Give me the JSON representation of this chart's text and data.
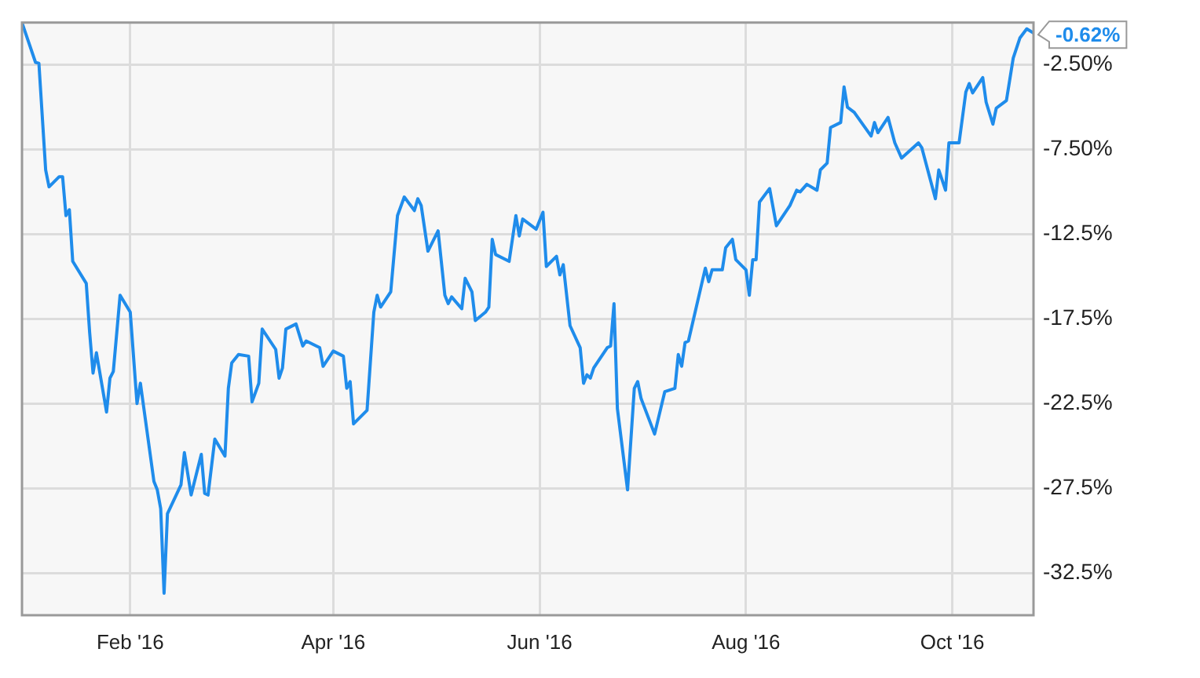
{
  "chart_data": {
    "type": "line",
    "x": [
      "2015-12-31",
      "2016-01-04",
      "2016-01-05",
      "2016-01-07",
      "2016-01-08",
      "2016-01-11",
      "2016-01-12",
      "2016-01-13",
      "2016-01-14",
      "2016-01-15",
      "2016-01-19",
      "2016-01-20",
      "2016-01-21",
      "2016-01-22",
      "2016-01-25",
      "2016-01-26",
      "2016-01-27",
      "2016-01-29",
      "2016-02-01",
      "2016-02-03",
      "2016-02-04",
      "2016-02-08",
      "2016-02-09",
      "2016-02-10",
      "2016-02-11",
      "2016-02-12",
      "2016-02-16",
      "2016-02-17",
      "2016-02-19",
      "2016-02-22",
      "2016-02-23",
      "2016-02-24",
      "2016-02-26",
      "2016-02-29",
      "2016-03-01",
      "2016-03-02",
      "2016-03-04",
      "2016-03-07",
      "2016-03-08",
      "2016-03-10",
      "2016-03-11",
      "2016-03-15",
      "2016-03-16",
      "2016-03-17",
      "2016-03-18",
      "2016-03-21",
      "2016-03-23",
      "2016-03-24",
      "2016-03-28",
      "2016-03-29",
      "2016-04-01",
      "2016-04-04",
      "2016-04-05",
      "2016-04-06",
      "2016-04-07",
      "2016-04-11",
      "2016-04-13",
      "2016-04-14",
      "2016-04-15",
      "2016-04-18",
      "2016-04-20",
      "2016-04-22",
      "2016-04-25",
      "2016-04-26",
      "2016-04-27",
      "2016-04-29",
      "2016-05-02",
      "2016-05-04",
      "2016-05-05",
      "2016-05-06",
      "2016-05-09",
      "2016-05-10",
      "2016-05-12",
      "2016-05-13",
      "2016-05-16",
      "2016-05-17",
      "2016-05-18",
      "2016-05-19",
      "2016-05-23",
      "2016-05-25",
      "2016-05-26",
      "2016-05-27",
      "2016-05-31",
      "2016-06-02",
      "2016-06-03",
      "2016-06-06",
      "2016-06-07",
      "2016-06-08",
      "2016-06-10",
      "2016-06-13",
      "2016-06-14",
      "2016-06-15",
      "2016-06-16",
      "2016-06-17",
      "2016-06-21",
      "2016-06-22",
      "2016-06-23",
      "2016-06-24",
      "2016-06-27",
      "2016-06-29",
      "2016-06-30",
      "2016-07-01",
      "2016-07-05",
      "2016-07-08",
      "2016-07-11",
      "2016-07-12",
      "2016-07-13",
      "2016-07-14",
      "2016-07-15",
      "2016-07-20",
      "2016-07-21",
      "2016-07-22",
      "2016-07-25",
      "2016-07-26",
      "2016-07-28",
      "2016-07-29",
      "2016-08-01",
      "2016-08-02",
      "2016-08-03",
      "2016-08-04",
      "2016-08-05",
      "2016-08-08",
      "2016-08-10",
      "2016-08-14",
      "2016-08-16",
      "2016-08-17",
      "2016-08-19",
      "2016-08-22",
      "2016-08-23",
      "2016-08-25",
      "2016-08-26",
      "2016-08-29",
      "2016-08-30",
      "2016-08-31",
      "2016-09-02",
      "2016-09-07",
      "2016-09-08",
      "2016-09-09",
      "2016-09-12",
      "2016-09-14",
      "2016-09-16",
      "2016-09-21",
      "2016-09-22",
      "2016-09-26",
      "2016-09-27",
      "2016-09-29",
      "2016-09-30",
      "2016-10-03",
      "2016-10-05",
      "2016-10-06",
      "2016-10-07",
      "2016-10-10",
      "2016-10-11",
      "2016-10-13",
      "2016-10-14",
      "2016-10-17",
      "2016-10-19",
      "2016-10-21",
      "2016-10-23",
      "2016-10-25"
    ],
    "series": [
      {
        "color": "#1f8ceb",
        "values": [
          0,
          -2.35,
          -2.4,
          -8.7,
          -9.7,
          -9.1,
          -9.1,
          -11.4,
          -11.05,
          -14.1,
          -15.4,
          -18.3,
          -20.7,
          -19.5,
          -23.0,
          -21.0,
          -20.6,
          -16.1,
          -17.1,
          -22.5,
          -21.3,
          -27.1,
          -27.6,
          -28.7,
          -33.7,
          -29.0,
          -27.3,
          -25.4,
          -27.9,
          -25.5,
          -27.8,
          -27.9,
          -24.6,
          -25.6,
          -21.6,
          -20.1,
          -19.6,
          -19.7,
          -22.4,
          -21.3,
          -18.1,
          -19.3,
          -21.0,
          -20.4,
          -18.1,
          -17.8,
          -19.1,
          -18.8,
          -19.2,
          -20.3,
          -19.4,
          -19.7,
          -21.6,
          -21.2,
          -23.7,
          -22.9,
          -17.1,
          -16.1,
          -16.8,
          -15.9,
          -11.4,
          -10.3,
          -11.1,
          -10.4,
          -10.8,
          -13.5,
          -12.3,
          -16.1,
          -16.6,
          -16.2,
          -16.9,
          -15.1,
          -15.9,
          -17.6,
          -17.1,
          -16.8,
          -12.8,
          -13.7,
          -14.1,
          -11.4,
          -12.6,
          -11.6,
          -12.2,
          -11.2,
          -14.4,
          -13.8,
          -14.9,
          -14.3,
          -17.9,
          -19.2,
          -21.3,
          -20.8,
          -21.0,
          -20.4,
          -19.2,
          -19.1,
          -16.6,
          -22.8,
          -27.6,
          -21.6,
          -21.2,
          -22.2,
          -24.3,
          -21.8,
          -21.6,
          -19.6,
          -20.3,
          -18.9,
          -18.8,
          -14.5,
          -15.3,
          -14.6,
          -14.6,
          -13.3,
          -12.8,
          -14.0,
          -14.6,
          -16.1,
          -14.0,
          -14.0,
          -10.6,
          -9.8,
          -12.0,
          -10.8,
          -9.9,
          -10.0,
          -9.55,
          -9.9,
          -8.7,
          -8.3,
          -6.2,
          -5.9,
          -3.8,
          -5.0,
          -5.3,
          -6.7,
          -5.9,
          -6.5,
          -5.6,
          -7.1,
          -8.0,
          -7.1,
          -7.4,
          -10.4,
          -8.7,
          -9.9,
          -7.1,
          -7.1,
          -4.1,
          -3.6,
          -4.15,
          -3.25,
          -4.7,
          -6.0,
          -5.05,
          -4.6,
          -2.1,
          -0.9,
          -0.37,
          -0.62
        ]
      }
    ],
    "xlim": [
      "2015-12-31",
      "2016-10-25"
    ],
    "xticks": [
      {
        "value": "2016-02-01",
        "label": "Feb '16"
      },
      {
        "value": "2016-04-01",
        "label": "Apr '16"
      },
      {
        "value": "2016-06-01",
        "label": "Jun '16"
      },
      {
        "value": "2016-08-01",
        "label": "Aug '16"
      },
      {
        "value": "2016-10-01",
        "label": "Oct '16"
      }
    ],
    "ylim": [
      -35,
      0
    ],
    "yticks": [
      {
        "value": -2.5,
        "label": "-2.50%"
      },
      {
        "value": -7.5,
        "label": "-7.50%"
      },
      {
        "value": -12.5,
        "label": "-12.5%"
      },
      {
        "value": -17.5,
        "label": "-17.5%"
      },
      {
        "value": -22.5,
        "label": "-22.5%"
      },
      {
        "value": -27.5,
        "label": "-27.5%"
      },
      {
        "value": -32.5,
        "label": "-32.5%"
      }
    ],
    "grid": true,
    "annotations": [
      {
        "text": "-0.62%",
        "x": "2016-10-25",
        "y": -0.62
      }
    ]
  }
}
